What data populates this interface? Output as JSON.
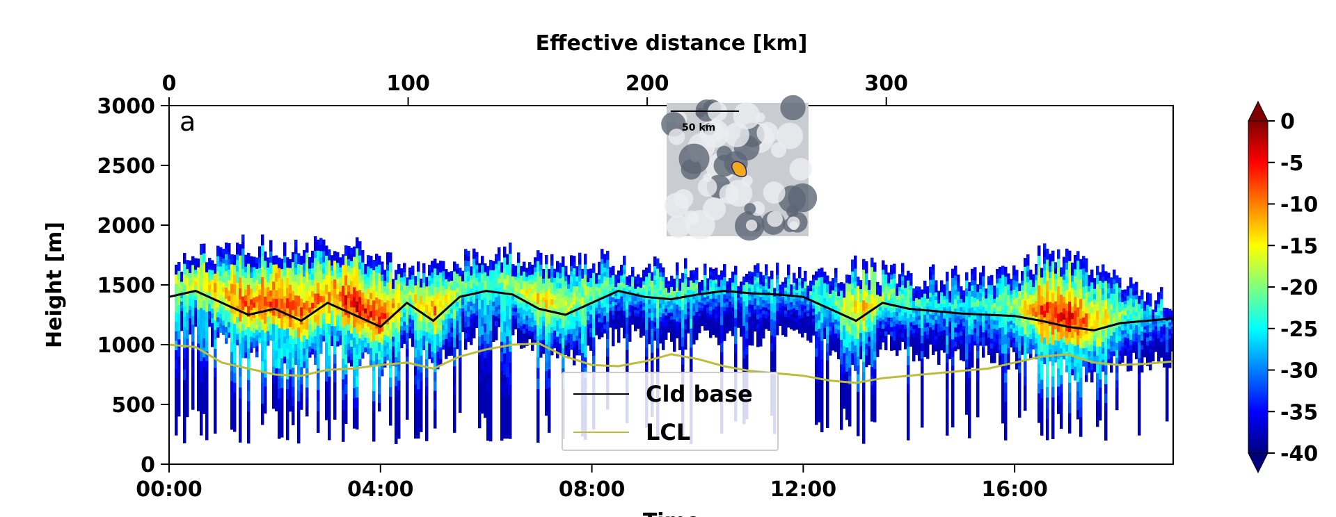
{
  "chart_data": {
    "type": "heatmap",
    "title": "",
    "panel_label": "a",
    "ylabel": "Height [m]",
    "xlabel_top": "Effective distance  [km]",
    "xlabel_bottom": "Time",
    "ylim": [
      0,
      3000
    ],
    "xlim_hours": [
      0,
      19
    ],
    "y_ticks": [
      0,
      500,
      1000,
      1500,
      2000,
      2500,
      3000
    ],
    "x_ticks_bottom": [
      "00:00",
      "04:00",
      "08:00",
      "12:00",
      "16:00"
    ],
    "x_ticks_top": [
      0,
      100,
      200,
      300
    ],
    "colorbar": {
      "ticks": [
        0,
        -5,
        -10,
        -15,
        -20,
        -25,
        -30,
        -35,
        -40
      ],
      "range": [
        -40,
        0
      ],
      "colormap": "jet"
    },
    "legend": {
      "placement": "lower-center",
      "entries": [
        {
          "label": "Cld base",
          "color": "#000000"
        },
        {
          "label": "LCL",
          "color": "#bdbd3c"
        }
      ]
    },
    "inset": {
      "scale_label": "50 km"
    },
    "series": [
      {
        "name": "Cld base",
        "x_hours": [
          0,
          0.5,
          1,
          1.5,
          2,
          2.5,
          3,
          3.5,
          4,
          4.5,
          5,
          5.5,
          6,
          6.5,
          7,
          7.5,
          8,
          8.5,
          9,
          9.5,
          10,
          10.5,
          11,
          11.5,
          12,
          12.5,
          13,
          13.5,
          14,
          14.5,
          15,
          15.5,
          16,
          16.5,
          17,
          17.5,
          18,
          18.5,
          19
        ],
        "y": [
          1400,
          1450,
          1350,
          1250,
          1300,
          1200,
          1350,
          1250,
          1150,
          1350,
          1200,
          1400,
          1450,
          1420,
          1300,
          1250,
          1350,
          1450,
          1400,
          1380,
          1420,
          1450,
          1430,
          1420,
          1400,
          1300,
          1200,
          1350,
          1300,
          1280,
          1260,
          1250,
          1240,
          1200,
          1150,
          1120,
          1180,
          1200,
          1220
        ]
      },
      {
        "name": "LCL",
        "x_hours": [
          0,
          0.5,
          1,
          1.5,
          2,
          2.5,
          3,
          3.5,
          4,
          4.5,
          5,
          5.5,
          6,
          6.5,
          7,
          7.5,
          8,
          8.5,
          9,
          9.5,
          10,
          10.5,
          11,
          11.5,
          12,
          12.5,
          13,
          13.5,
          14,
          14.5,
          15,
          15.5,
          16,
          16.5,
          17,
          17.5,
          18,
          18.5,
          19
        ],
        "y": [
          1000,
          980,
          850,
          800,
          750,
          740,
          790,
          800,
          830,
          850,
          800,
          900,
          960,
          1000,
          1010,
          900,
          830,
          820,
          860,
          920,
          880,
          820,
          780,
          760,
          740,
          700,
          680,
          720,
          740,
          760,
          780,
          800,
          850,
          900,
          920,
          850,
          830,
          840,
          860
        ]
      }
    ]
  }
}
